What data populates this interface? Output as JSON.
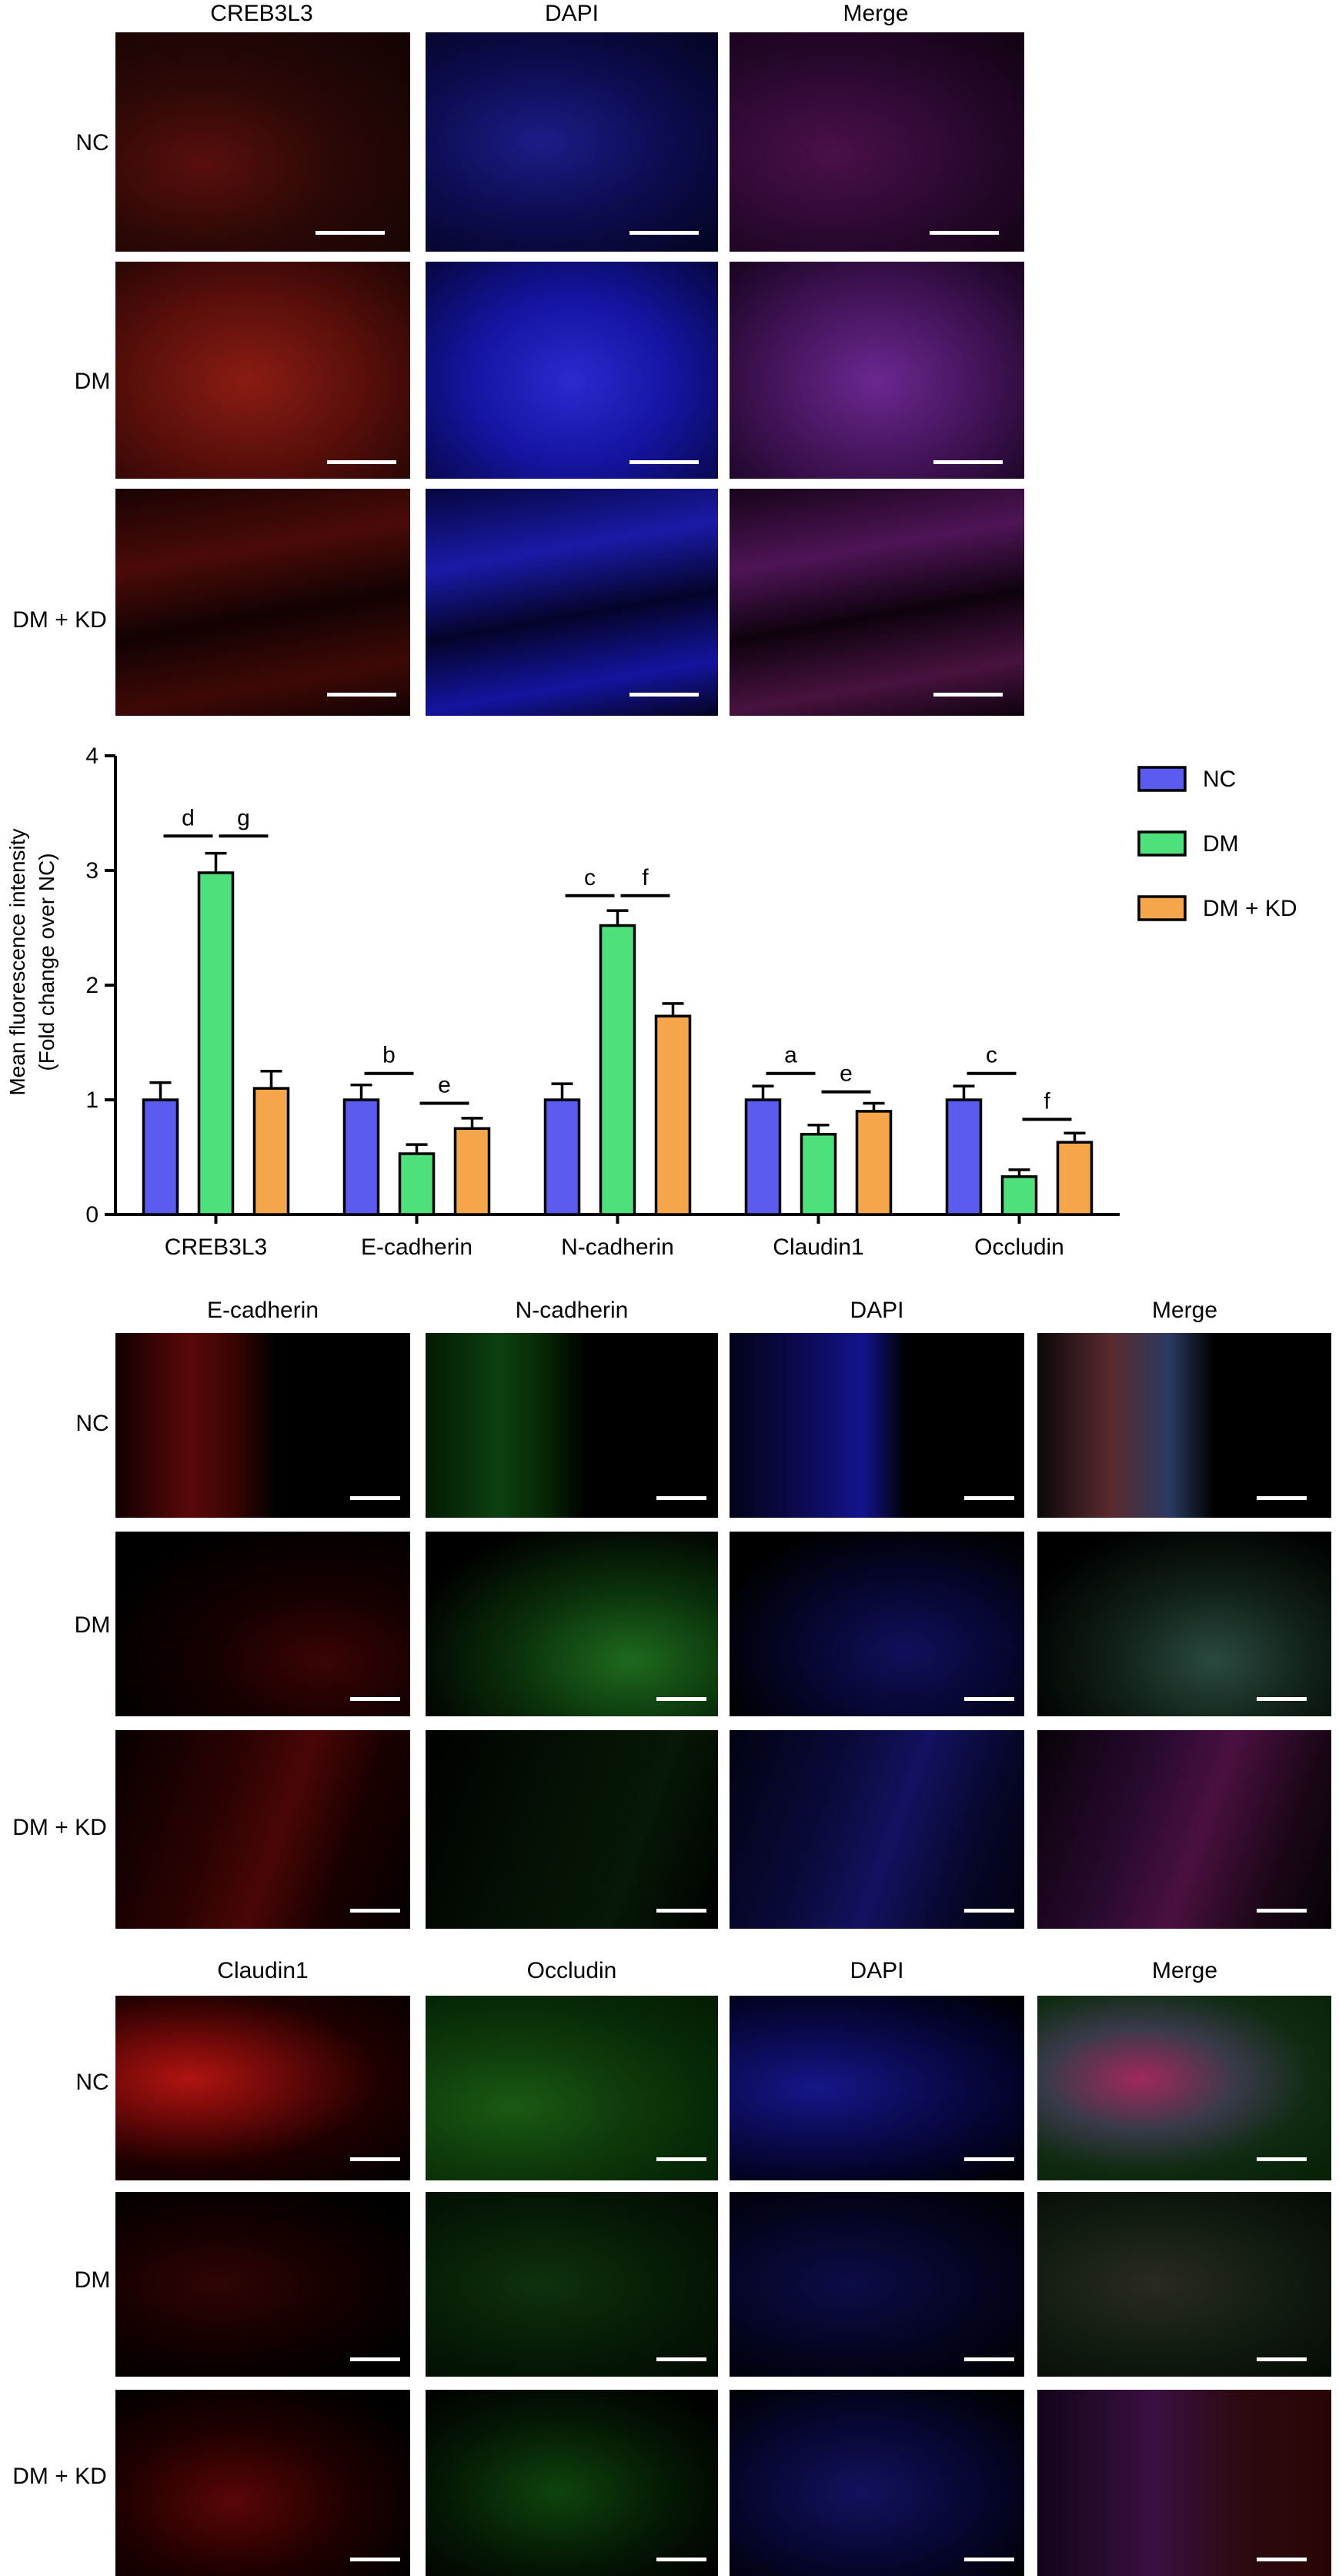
{
  "figure_top": {
    "columns": [
      "CREB3L3",
      "DAPI",
      "Merge"
    ],
    "rows": [
      "NC",
      "DM",
      "DM + KD"
    ]
  },
  "figure_mid": {
    "columns": [
      "E-cadherin",
      "N-cadherin",
      "DAPI",
      "Merge"
    ],
    "rows": [
      "NC",
      "DM",
      "DM + KD"
    ]
  },
  "figure_bottom": {
    "columns": [
      "Claudin1",
      "Occludin",
      "DAPI",
      "Merge"
    ],
    "rows": [
      "NC",
      "DM",
      "DM + KD"
    ]
  },
  "colors": {
    "NC": "#5b5bf0",
    "DM": "#4ee07a",
    "DM + KD": "#f5a64a",
    "red_stain": "#b0201a",
    "blue_stain": "#2a2ad8",
    "green_stain": "#28b428"
  },
  "chart_data": {
    "type": "bar",
    "ylabel_line1": "Mean fluorescence intensity",
    "ylabel_line2": "(Fold change over NC)",
    "ylim": [
      0,
      4
    ],
    "yticks": [
      "0",
      "1",
      "2",
      "3",
      "4"
    ],
    "categories": [
      "CREB3L3",
      "E-cadherin",
      "N-cadherin",
      "Claudin1",
      "Occludin"
    ],
    "series": [
      {
        "name": "NC",
        "color": "#5b5bf0",
        "values": [
          1.0,
          1.0,
          1.0,
          1.0,
          1.0
        ],
        "errors": [
          0.15,
          0.13,
          0.14,
          0.12,
          0.12
        ]
      },
      {
        "name": "DM",
        "color": "#4ee07a",
        "values": [
          2.98,
          0.53,
          2.52,
          0.7,
          0.33
        ],
        "errors": [
          0.17,
          0.08,
          0.13,
          0.08,
          0.06
        ]
      },
      {
        "name": "DM + KD",
        "color": "#f5a64a",
        "values": [
          1.1,
          0.75,
          1.73,
          0.9,
          0.63
        ],
        "errors": [
          0.15,
          0.09,
          0.11,
          0.07,
          0.08
        ]
      }
    ],
    "significance": [
      {
        "category": 0,
        "pair": "NC-DM",
        "label": "d",
        "y": 3.3
      },
      {
        "category": 0,
        "pair": "DM-KD",
        "label": "g",
        "y": 3.3
      },
      {
        "category": 1,
        "pair": "NC-DM",
        "label": "b",
        "y": 1.23
      },
      {
        "category": 1,
        "pair": "DM-KD",
        "label": "e",
        "y": 0.97
      },
      {
        "category": 2,
        "pair": "NC-DM",
        "label": "c",
        "y": 2.78
      },
      {
        "category": 2,
        "pair": "DM-KD",
        "label": "f",
        "y": 2.78
      },
      {
        "category": 3,
        "pair": "NC-DM",
        "label": "a",
        "y": 1.23
      },
      {
        "category": 3,
        "pair": "DM-KD",
        "label": "e",
        "y": 1.07
      },
      {
        "category": 4,
        "pair": "NC-DM",
        "label": "c",
        "y": 1.23
      },
      {
        "category": 4,
        "pair": "DM-KD",
        "label": "f",
        "y": 0.83
      }
    ],
    "legend": [
      "NC",
      "DM",
      "DM + KD"
    ],
    "legend_position": "top-right"
  }
}
